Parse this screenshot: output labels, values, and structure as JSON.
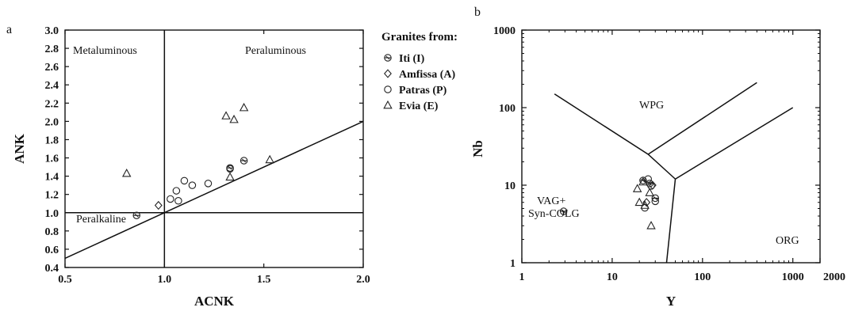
{
  "chart_data": [
    {
      "panel_label": "a",
      "type": "scatter",
      "xlabel": "ACNK",
      "ylabel": "ANK",
      "xlim": [
        0.5,
        2.0
      ],
      "ylim": [
        0.4,
        3.0
      ],
      "xticks": [
        "0.5",
        "1.0",
        "1.5",
        "2.0"
      ],
      "yticks": [
        "0.4",
        "0.6",
        "0.8",
        "1.0",
        "1.2",
        "1.4",
        "1.6",
        "1.8",
        "2.0",
        "2.2",
        "2.4",
        "2.6",
        "2.8",
        "3.0"
      ],
      "regions": [
        "Metaluminous",
        "Peraluminous",
        "Peralkaline"
      ],
      "boundaries": [
        {
          "points": [
            [
              1.0,
              0.4
            ],
            [
              1.0,
              3.0
            ]
          ]
        },
        {
          "points": [
            [
              0.5,
              1.0
            ],
            [
              2.0,
              1.0
            ]
          ]
        },
        {
          "points": [
            [
              0.5,
              0.5
            ],
            [
              2.0,
              2.0
            ]
          ]
        }
      ],
      "series": [
        {
          "name": "Iti (I)",
          "marker": "circle-cross",
          "points": [
            [
              0.86,
              0.97
            ],
            [
              1.33,
              1.49
            ],
            [
              1.4,
              1.57
            ]
          ]
        },
        {
          "name": "Amfissa (A)",
          "marker": "diamond",
          "points": [
            [
              0.97,
              1.08
            ]
          ]
        },
        {
          "name": "Patras (P)",
          "marker": "circle",
          "points": [
            [
              1.03,
              1.15
            ],
            [
              1.06,
              1.24
            ],
            [
              1.07,
              1.13
            ],
            [
              1.1,
              1.35
            ],
            [
              1.14,
              1.3
            ],
            [
              1.22,
              1.32
            ],
            [
              1.33,
              1.48
            ]
          ]
        },
        {
          "name": "Evia (E)",
          "marker": "triangle",
          "points": [
            [
              0.81,
              1.43
            ],
            [
              1.31,
              2.06
            ],
            [
              1.35,
              2.02
            ],
            [
              1.4,
              2.15
            ],
            [
              1.33,
              1.39
            ],
            [
              1.53,
              1.58
            ]
          ]
        }
      ]
    },
    {
      "panel_label": "b",
      "type": "scatter",
      "xlabel": "Y",
      "ylabel": "Nb",
      "xscale": "log",
      "yscale": "log",
      "xlim": [
        1,
        2000
      ],
      "ylim": [
        1,
        1000
      ],
      "xticks": [
        "1",
        "10",
        "100",
        "1000",
        "2000"
      ],
      "yticks": [
        "1",
        "10",
        "100",
        "1000"
      ],
      "regions": [
        "WPG",
        "VAG+",
        "Syn-COLG",
        "ORG"
      ],
      "boundaries": [
        {
          "points": [
            [
              2.3,
              150
            ],
            [
              25,
              25
            ],
            [
              50,
              12
            ],
            [
              40,
              1
            ]
          ]
        },
        {
          "points": [
            [
              25,
              25
            ],
            [
              400,
              210
            ]
          ]
        },
        {
          "points": [
            [
              50,
              12
            ],
            [
              1000,
              100
            ]
          ]
        }
      ],
      "series": [
        {
          "name": "Iti (I)",
          "marker": "circle-cross",
          "points": [
            [
              2.9,
              4.6
            ],
            [
              22,
              11.5
            ],
            [
              26,
              10.5
            ],
            [
              30,
              6.8
            ]
          ]
        },
        {
          "name": "Amfissa (A)",
          "marker": "diamond",
          "points": [
            [
              24,
              6
            ],
            [
              28,
              10
            ]
          ]
        },
        {
          "name": "Patras (P)",
          "marker": "circle",
          "points": [
            [
              23,
              5.1
            ],
            [
              27,
              9.8
            ],
            [
              30,
              6.2
            ],
            [
              25,
              12
            ]
          ]
        },
        {
          "name": "Evia (E)",
          "marker": "triangle",
          "points": [
            [
              19,
              9
            ],
            [
              20,
              6
            ],
            [
              22,
              11
            ],
            [
              26,
              8
            ],
            [
              23,
              5.5
            ],
            [
              27,
              3
            ]
          ]
        }
      ]
    }
  ],
  "legend": {
    "title": "Granites from:",
    "items": [
      {
        "label": "Iti (I)",
        "marker": "circle-cross"
      },
      {
        "label": "Amfissa (A)",
        "marker": "diamond"
      },
      {
        "label": "Patras (P)",
        "marker": "circle"
      },
      {
        "label": "Evia (E)",
        "marker": "triangle"
      }
    ]
  }
}
